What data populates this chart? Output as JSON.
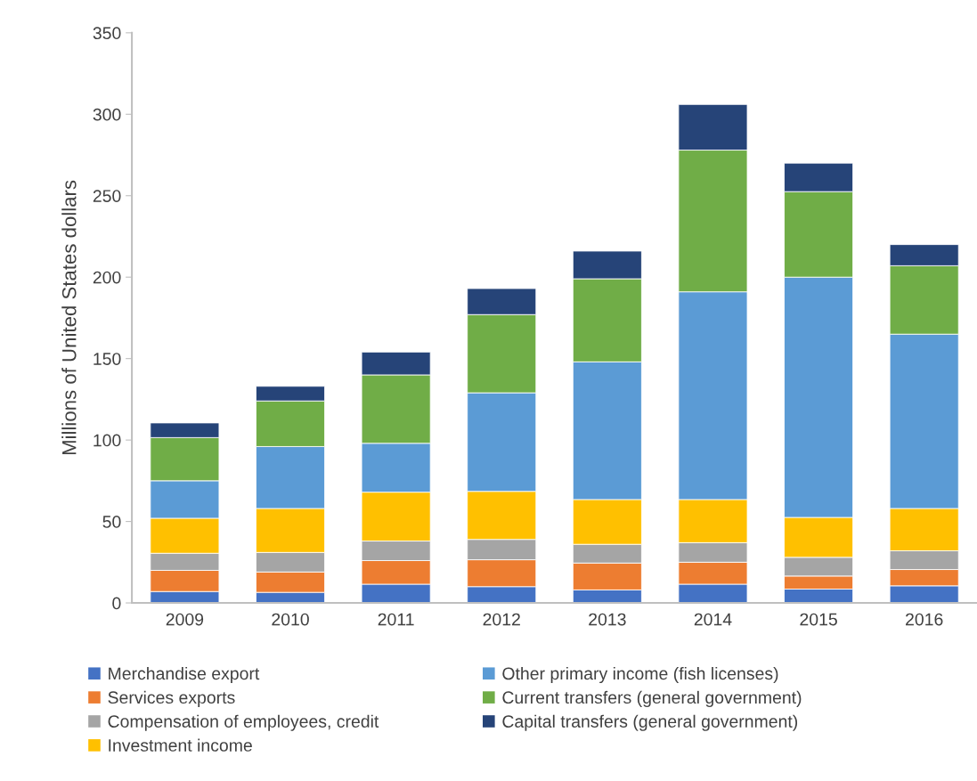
{
  "chart_data": {
    "type": "bar",
    "stacked": true,
    "ylabel": "Millions of United States dollars",
    "categories": [
      "2009",
      "2010",
      "2011",
      "2012",
      "2013",
      "2014",
      "2015",
      "2016"
    ],
    "ylim": [
      0,
      350
    ],
    "yticks": [
      0,
      50,
      100,
      150,
      200,
      250,
      300,
      350
    ],
    "grid": false,
    "legend": "bottom",
    "series": [
      {
        "name": "Merchandise export",
        "color": "#4472c4",
        "values": [
          7,
          6.5,
          11.5,
          10,
          8,
          11.5,
          8.5,
          10.5
        ]
      },
      {
        "name": "Services exports",
        "color": "#ed7d31",
        "values": [
          13,
          12.5,
          14.5,
          16.5,
          16.5,
          13.5,
          8,
          10
        ]
      },
      {
        "name": "Compensation of employees, credit",
        "color": "#a5a5a5",
        "values": [
          10.5,
          12,
          12,
          12.5,
          11.5,
          12,
          11.5,
          11.5
        ]
      },
      {
        "name": "Investment income",
        "color": "#ffc000",
        "values": [
          21.5,
          27,
          30,
          29.5,
          27.5,
          26.5,
          24.5,
          26
        ]
      },
      {
        "name": "Other primary income (fish licenses)",
        "color": "#5b9bd5",
        "values": [
          23,
          38,
          30,
          60.5,
          84.5,
          127.5,
          147.5,
          107
        ]
      },
      {
        "name": "Current transfers (general government)",
        "color": "#70ad47",
        "values": [
          26.5,
          28,
          42,
          48,
          51,
          87,
          52.5,
          42
        ]
      },
      {
        "name": "Capital transfers (general government)",
        "color": "#264478",
        "values": [
          9,
          9,
          14,
          16,
          17,
          28,
          17.5,
          13
        ]
      }
    ]
  }
}
